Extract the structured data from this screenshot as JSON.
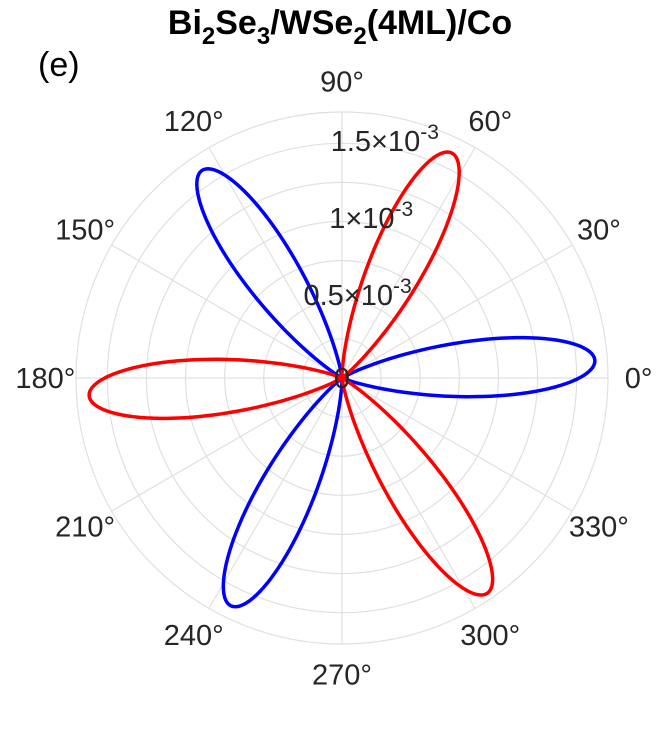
{
  "panel_label": "(e)",
  "title_parts": [
    {
      "text": "Bi",
      "sub": false
    },
    {
      "text": "2",
      "sub": true
    },
    {
      "text": "Se",
      "sub": false
    },
    {
      "text": "3",
      "sub": true
    },
    {
      "text": "/WSe",
      "sub": false
    },
    {
      "text": "2",
      "sub": true
    },
    {
      "text": "(4ML)/Co",
      "sub": false
    }
  ],
  "chart_data": {
    "type": "polar-line",
    "title": "Bi2Se3/WSe2(4ML)/Co",
    "theta_unit": "degrees",
    "theta_ticks": [
      0,
      30,
      60,
      90,
      120,
      150,
      180,
      210,
      240,
      270,
      300,
      330
    ],
    "theta_tick_labels": [
      "0°",
      "30°",
      "60°",
      "90°",
      "120°",
      "150°",
      "180°",
      "210°",
      "240°",
      "270°",
      "300°",
      "330°"
    ],
    "r_lim": [
      0,
      0.0017
    ],
    "r_ticks": [
      0,
      0.0005,
      0.001,
      0.0015
    ],
    "r_tick_labels": [
      {
        "mant": "0",
        "exp": ""
      },
      {
        "mant": "0.5×10",
        "exp": "-3"
      },
      {
        "mant": "1×10",
        "exp": "-3"
      },
      {
        "mant": "1.5×10",
        "exp": "-3"
      }
    ],
    "r_tick_label_angle_deg": 80,
    "grid": true,
    "series": [
      {
        "color": "#0000ff",
        "lobe_centers_deg": [
          4,
          124,
          244
        ],
        "lobe_peaks": [
          0.00162,
          0.0016,
          0.00162
        ],
        "lobe_half_width_deg": 30,
        "shape_exponent": 3
      },
      {
        "color": "#ff0000",
        "lobe_centers_deg": [
          64,
          184,
          304
        ],
        "lobe_peaks": [
          0.0016,
          0.00162,
          0.00166
        ],
        "lobe_half_width_deg": 30,
        "shape_exponent": 3
      }
    ]
  }
}
